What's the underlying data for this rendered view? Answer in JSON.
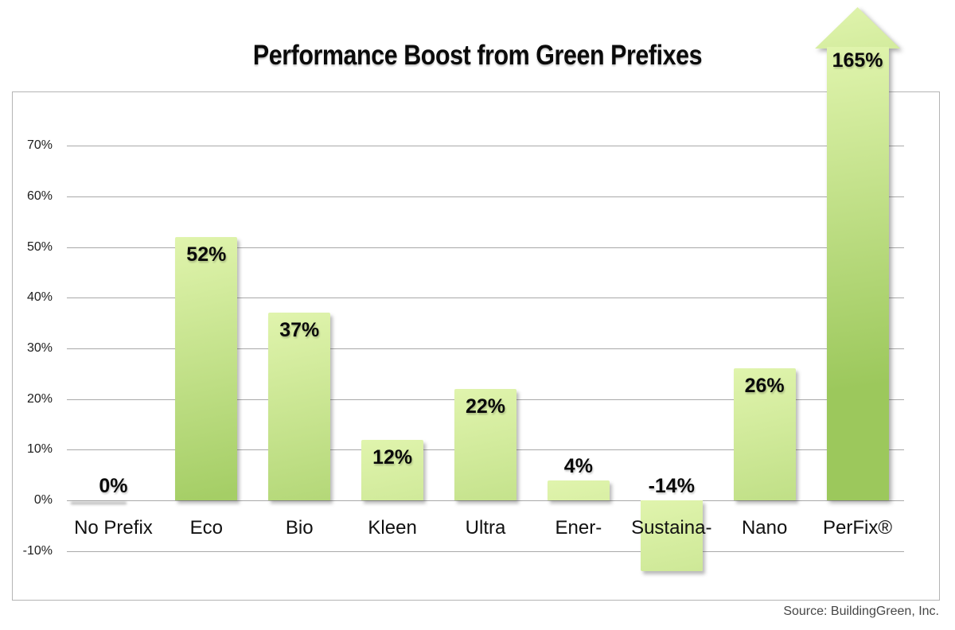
{
  "title": "Performance Boost from Green Prefixes",
  "source_note": "Source: BuildingGreen, Inc.",
  "chart_data": {
    "type": "bar",
    "title": "Performance Boost from Green Prefixes",
    "categories": [
      "No Prefix",
      "Eco",
      "Bio",
      "Kleen",
      "Ultra",
      "Ener-",
      "Sustaina-",
      "Nano",
      "PerFix®"
    ],
    "values": [
      0,
      52,
      37,
      12,
      22,
      4,
      -14,
      26,
      165
    ],
    "value_labels": [
      "0%",
      "52%",
      "37%",
      "12%",
      "22%",
      "4%",
      "-14%",
      "26%",
      "165%"
    ],
    "y_ticks": [
      {
        "value": 70,
        "label": "70%"
      },
      {
        "value": 60,
        "label": "60%"
      },
      {
        "value": 50,
        "label": "50%"
      },
      {
        "value": 40,
        "label": "40%"
      },
      {
        "value": 30,
        "label": "30%"
      },
      {
        "value": 20,
        "label": "20%"
      },
      {
        "value": 10,
        "label": "10%"
      },
      {
        "value": 0,
        "label": "0%"
      },
      {
        "value": -10,
        "label": "-10%"
      }
    ],
    "ylim": [
      -20,
      80
    ],
    "grid": true,
    "legend": false,
    "xlabel": "",
    "ylabel": "",
    "annotation": "PerFix® value (165%) exceeds the axis maximum and is drawn as an upward arrow breaking out of the plot frame",
    "source": "Source: BuildingGreen, Inc."
  },
  "colors": {
    "bar_gradient_top": "#e0f4ad",
    "bar_gradient_bottom": "#a5ce66",
    "arrow_gradient_bottom": "#9cc85c",
    "gridline": "#a9a9a9",
    "frame_border": "#b4b4b4",
    "title_text": "#0b0b0b",
    "tick_text": "#1d1d1d",
    "category_text": "#111111",
    "value_text": "#0a0a0a",
    "source_text": "#464646",
    "background": "#ffffff"
  }
}
